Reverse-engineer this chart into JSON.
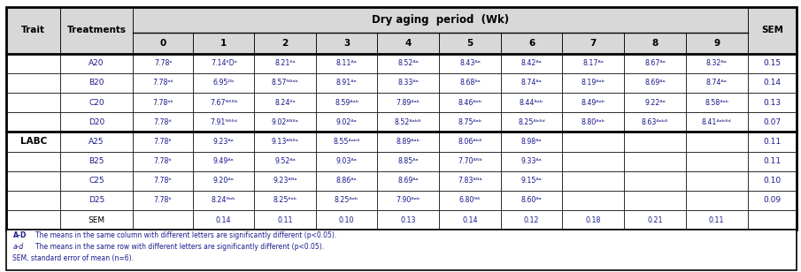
{
  "title": "Dry aging period (Wk)",
  "col_nums": [
    "0",
    "1",
    "2",
    "3",
    "4",
    "5",
    "6",
    "7",
    "8",
    "9"
  ],
  "rows": [
    {
      "trait": "",
      "treat": "A20",
      "vals": [
        "7.78ᵃ",
        "7.14ᶞDᵃ",
        "8.21ᶞᵃ",
        "8.11ᴬᵃ",
        "8.52ᴬᵃ",
        "8.43ᴬᵃ",
        "8.42ᴬᵃ",
        "8.17ᴬᵃ",
        "8.67ᴬᵃ",
        "8.32ᴬᵃ"
      ],
      "sem": "0.15"
    },
    {
      "trait": "",
      "treat": "B20",
      "vals": [
        "7.78ᵃᵇ",
        "6.95ᴰᵇ",
        "8.57ᴺᶞᵃᵇ",
        "8.91ᴬᵃ",
        "8.33ᴬᵃ",
        "8.68ᴬᵃ",
        "8.74ᴬᵃ",
        "8.19ᴬᵃᵇ",
        "8.69ᴬᵃ",
        "8.74ᴬᵃ"
      ],
      "sem": "0.14"
    },
    {
      "trait": "",
      "treat": "C20",
      "vals": [
        "7.78ᵃᵇ",
        "7.67ᴺᶞᴰᵇ",
        "8.24ᶞᵃ",
        "8.59ᴬᵃᵇ",
        "7.89ᴬᵃᵇ",
        "8.46ᴬᵃᵇ",
        "8.44ᴬᵃᵇ",
        "8.49ᴬᵃᵇ",
        "9.22ᴬᵃ",
        "8.58ᴬᵃᵇ"
      ],
      "sem": "0.13"
    },
    {
      "trait": "",
      "treat": "D20",
      "vals": [
        "7.78ᵈ",
        "7.91ᴺᶞᶞᵈ",
        "9.02ᴬᴺᶞᵃ",
        "9.02ᴬᵃ",
        "8.52ᴬᵃᵇᶞ",
        "8.75ᴬᵃᵇ",
        "8.25ᴬᵇᶞᵈ",
        "8.80ᴬᵃᵇ",
        "8.63ᴬᵃᵇᶞ",
        "8.41ᴬᵃᵇᶞᵈ"
      ],
      "sem": "0.07"
    },
    {
      "trait": "LABC",
      "treat": "A25",
      "vals": [
        "7.78ᶞ",
        "9.23ᴬᵃ",
        "9.13ᴬᴺᶞᵃ",
        "8.55ᴬᵃᵇᶞ",
        "8.89ᴬᵃᵇ",
        "8.06ᴬᵇᶞ",
        "8.98ᴬᵃ",
        "",
        "",
        ""
      ],
      "sem": "0.11"
    },
    {
      "trait": "",
      "treat": "B25",
      "vals": [
        "7.78ᵇ",
        "9.49ᴬᵃ",
        "9.52ᴬᵃ",
        "9.03ᴬᵃ",
        "8.85ᴬᵃ",
        "7.70ᴬᴺᵇ",
        "9.33ᴬᵃ",
        "",
        "",
        ""
      ],
      "sem": "0.11"
    },
    {
      "trait": "",
      "treat": "C25",
      "vals": [
        "7.78ᵇ",
        "9.20ᴬᵃ",
        "9.23ᴬᴺᵃ",
        "8.86ᴬᵃ",
        "8.69ᴬᵃ",
        "7.83ᴬᴺᵇ",
        "9.15ᴬᵃ",
        "",
        "",
        ""
      ],
      "sem": "0.10"
    },
    {
      "trait": "",
      "treat": "D25",
      "vals": [
        "7.78ᵇ",
        "8.24ᴺᵃᵇ",
        "8.25ᶞᵃᵇ",
        "8.25ᴬᵃᵇ",
        "7.90ᴬᵃᵇ",
        "6.80ᴺᶞ",
        "8.60ᴬᵃ",
        "",
        "",
        ""
      ],
      "sem": "0.09"
    },
    {
      "trait": "",
      "treat": "SEM",
      "vals": [
        "",
        "0.14",
        "0.11",
        "0.10",
        "0.13",
        "0.14",
        "0.12",
        "0.18",
        "0.21",
        "0.11"
      ],
      "sem": ""
    }
  ],
  "header_bg": "#d8d8d8",
  "text_blue": "#1a1a8c",
  "border_color": "#000000",
  "fn1_super": "A-D",
  "fn1_text": " The means in the same column with different letters are significantly different (p<0.05).",
  "fn2_super": "a-d",
  "fn2_text": " The means in the same row with different letters are significantly different (p<0.05).",
  "fn3": "SEM, standard error of mean (n=6)."
}
